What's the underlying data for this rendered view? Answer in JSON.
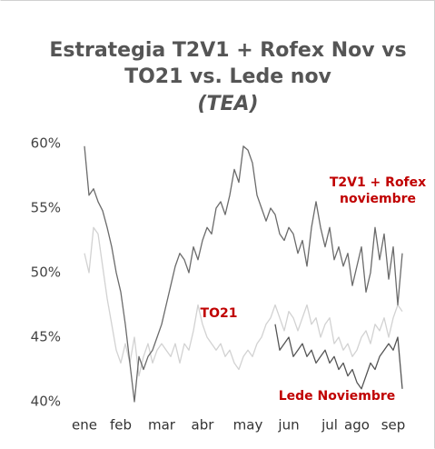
{
  "chart_data": {
    "type": "line",
    "title": [
      "Estrategia T2V1 + Rofex Nov vs",
      "TO21 vs. Lede nov"
    ],
    "subtitle": "(TEA)",
    "categories": [
      "ene",
      null,
      null,
      null,
      null,
      null,
      null,
      null,
      "feb",
      null,
      null,
      null,
      null,
      null,
      null,
      null,
      null,
      "mar",
      null,
      null,
      null,
      null,
      null,
      null,
      null,
      null,
      "abr",
      null,
      null,
      null,
      null,
      null,
      null,
      null,
      null,
      null,
      "may",
      null,
      null,
      null,
      null,
      null,
      null,
      null,
      null,
      "jun",
      null,
      null,
      null,
      null,
      null,
      null,
      null,
      null,
      "jul",
      null,
      null,
      null,
      null,
      null,
      "ago",
      null,
      null,
      null,
      null,
      null,
      null,
      null,
      "sep",
      null,
      null
    ],
    "series": [
      {
        "name": "T2V1 + Rofex noviembre",
        "color": "#6b6b6b",
        "label_color": "#c00000",
        "values": [
          59.8,
          56,
          56.5,
          55.5,
          54.8,
          53.5,
          52,
          50,
          48.5,
          46,
          43,
          40,
          43.5,
          42.5,
          43.5,
          44,
          45,
          46,
          47.5,
          49,
          50.5,
          51.5,
          51,
          50,
          52,
          51,
          52.5,
          53.5,
          53,
          55,
          55.5,
          54.5,
          56,
          58,
          57,
          59.8,
          59.5,
          58.5,
          56,
          55,
          54,
          55,
          54.5,
          53,
          52.5,
          53.5,
          53,
          51.5,
          52.5,
          50.5,
          53.5,
          55.5,
          53.5,
          52,
          53.5,
          51,
          52,
          50.5,
          51.5,
          49,
          50.5,
          52,
          48.5,
          50,
          53.5,
          51,
          53,
          49.5,
          52,
          47.5,
          51.5
        ]
      },
      {
        "name": "TO21",
        "color": "#d2d2d2",
        "label_color": "#c00000",
        "values": [
          51.5,
          50,
          53.5,
          53,
          50.5,
          48,
          46,
          44,
          43,
          44.5,
          43,
          45,
          42,
          43.5,
          44.5,
          43,
          44,
          44.5,
          44,
          43.5,
          44.5,
          43,
          44.5,
          44,
          45.5,
          47.5,
          46,
          45,
          44.5,
          44,
          44.5,
          43.5,
          44,
          43,
          42.5,
          43.5,
          44,
          43.5,
          44.5,
          45,
          46,
          46.5,
          47.5,
          46.5,
          45.5,
          47,
          46.5,
          45.5,
          46.5,
          47.5,
          46,
          46.5,
          45,
          46,
          46.5,
          44.5,
          45,
          44,
          44.5,
          43.5,
          44,
          45,
          45.5,
          44.5,
          46,
          45.5,
          46.5,
          45,
          46.5,
          47.5,
          47
        ]
      },
      {
        "name": "Lede Noviembre",
        "color": "#555555",
        "label_color": "#c00000",
        "values": [
          null,
          null,
          null,
          null,
          null,
          null,
          null,
          null,
          null,
          null,
          null,
          null,
          null,
          null,
          null,
          null,
          null,
          null,
          null,
          null,
          null,
          null,
          null,
          null,
          null,
          null,
          null,
          null,
          null,
          null,
          null,
          null,
          null,
          null,
          null,
          null,
          null,
          null,
          null,
          null,
          null,
          null,
          46,
          44,
          44.5,
          45,
          43.5,
          44,
          44.5,
          43.5,
          44,
          43,
          43.5,
          44,
          43,
          43.5,
          42.5,
          43,
          42,
          42.5,
          41.5,
          41,
          42,
          43,
          42.5,
          43.5,
          44,
          44.5,
          44,
          45,
          41
        ]
      }
    ],
    "ylim": [
      39.5,
      61
    ],
    "yticks": [
      {
        "value": 40,
        "label": "40%"
      },
      {
        "value": 45,
        "label": "45%"
      },
      {
        "value": 50,
        "label": "50%"
      },
      {
        "value": 55,
        "label": "55%"
      },
      {
        "value": 60,
        "label": "60%"
      }
    ],
    "grid": false
  }
}
